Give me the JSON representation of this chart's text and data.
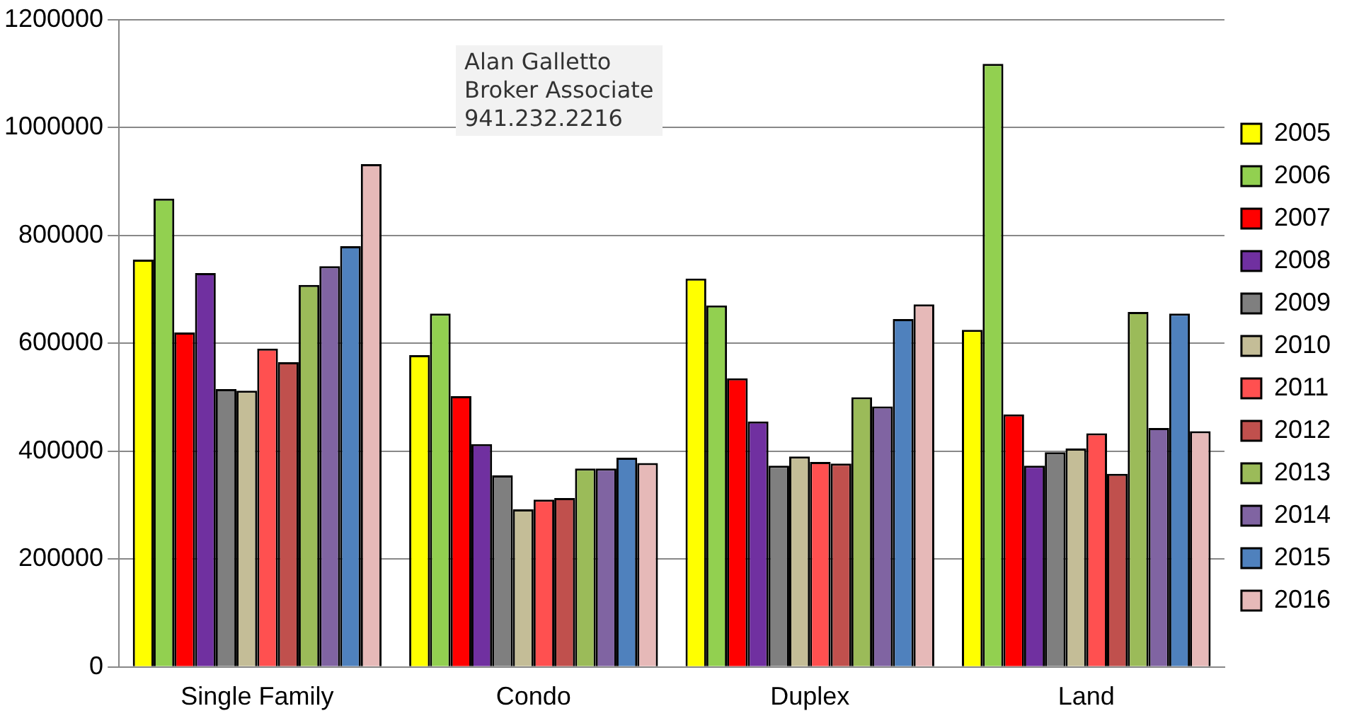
{
  "chart_data": {
    "type": "bar",
    "categories": [
      "Single Family",
      "Condo",
      "Duplex",
      "Land"
    ],
    "series": [
      {
        "name": "2005",
        "color": "#ffff00",
        "values": [
          755000,
          578000,
          720000,
          625000
        ]
      },
      {
        "name": "2006",
        "color": "#92d050",
        "values": [
          868000,
          655000,
          670000,
          1118000
        ]
      },
      {
        "name": "2007",
        "color": "#ff0000",
        "values": [
          620000,
          502000,
          535000,
          468000
        ]
      },
      {
        "name": "2008",
        "color": "#7030a0",
        "values": [
          730000,
          413000,
          455000,
          373000
        ]
      },
      {
        "name": "2009",
        "color": "#7f7f7f",
        "values": [
          515000,
          355000,
          373000,
          398000
        ]
      },
      {
        "name": "2010",
        "color": "#c4bd97",
        "values": [
          512000,
          292000,
          390000,
          405000
        ]
      },
      {
        "name": "2011",
        "color": "#ff5050",
        "values": [
          590000,
          310000,
          380000,
          433000
        ]
      },
      {
        "name": "2012",
        "color": "#c0504d",
        "values": [
          565000,
          313000,
          377000,
          358000
        ]
      },
      {
        "name": "2013",
        "color": "#9bbb59",
        "values": [
          708000,
          368000,
          500000,
          658000
        ]
      },
      {
        "name": "2014",
        "color": "#8064a2",
        "values": [
          743000,
          368000,
          483000,
          443000
        ]
      },
      {
        "name": "2015",
        "color": "#4f81bd",
        "values": [
          780000,
          388000,
          645000,
          655000
        ]
      },
      {
        "name": "2016",
        "color": "#e6b9b8",
        "values": [
          932000,
          378000,
          672000,
          437000
        ]
      }
    ],
    "ylim": [
      0,
      1200000
    ],
    "yticks": [
      0,
      200000,
      400000,
      600000,
      800000,
      1000000,
      1200000
    ],
    "grid": "y",
    "legend": "right",
    "annotations": [
      "Alan Galletto\nBroker Associate\n941.232.2216"
    ]
  }
}
